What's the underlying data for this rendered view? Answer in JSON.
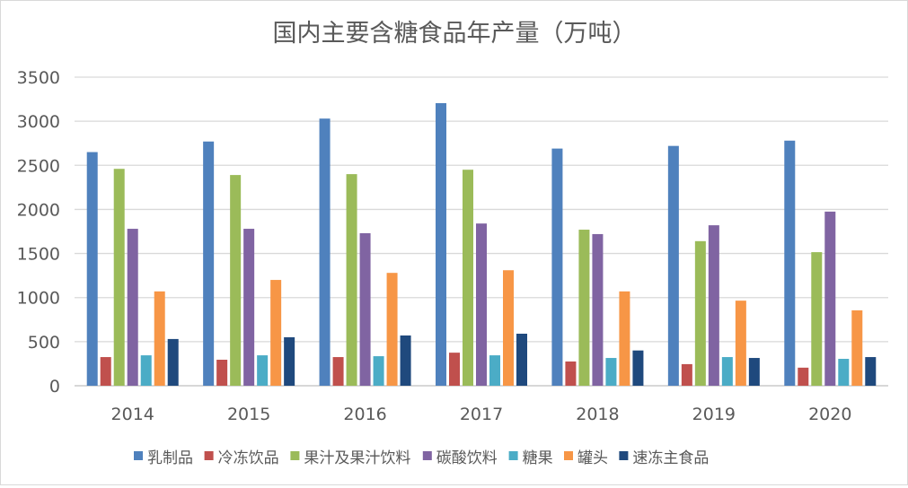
{
  "chart_data": {
    "type": "bar",
    "title": "国内主要含糖食品年产量（万吨）",
    "xlabel": "",
    "ylabel": "",
    "ylim": [
      0,
      3500
    ],
    "yticks": [
      "0",
      "500",
      "1000",
      "1500",
      "2000",
      "2500",
      "3000",
      "3500"
    ],
    "grid": true,
    "legend_position": "bottom",
    "categories": [
      "2014",
      "2015",
      "2016",
      "2017",
      "2018",
      "2019",
      "2020"
    ],
    "series": [
      {
        "name": "乳制品",
        "color": "#4f81bd",
        "values": [
          2650,
          2770,
          3030,
          3205,
          2690,
          2720,
          2780
        ]
      },
      {
        "name": "冷冻饮品",
        "color": "#c0504d",
        "values": [
          325,
          295,
          325,
          375,
          275,
          245,
          205
        ]
      },
      {
        "name": "果汁及果汁饮料",
        "color": "#9bbb59",
        "values": [
          2460,
          2390,
          2400,
          2450,
          1770,
          1640,
          1515
        ]
      },
      {
        "name": "碳酸饮料",
        "color": "#8064a2",
        "values": [
          1780,
          1780,
          1730,
          1840,
          1720,
          1820,
          1975
        ]
      },
      {
        "name": "糖果",
        "color": "#4bacc6",
        "values": [
          345,
          345,
          335,
          345,
          315,
          325,
          305
        ]
      },
      {
        "name": "罐头",
        "color": "#f79646",
        "values": [
          1070,
          1200,
          1280,
          1310,
          1070,
          965,
          855
        ]
      },
      {
        "name": "速冻主食品",
        "color": "#1f497d",
        "values": [
          530,
          550,
          570,
          590,
          400,
          315,
          325
        ]
      }
    ]
  }
}
